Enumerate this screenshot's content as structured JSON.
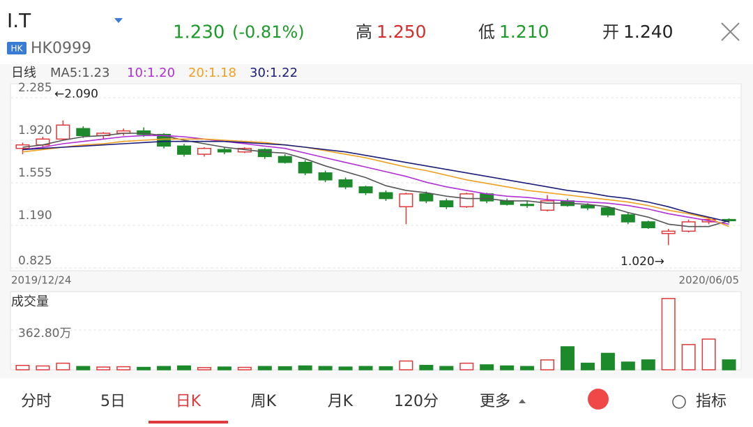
{
  "header": {
    "name": "I.T",
    "badge": "HK",
    "code": "HK0999",
    "price": "1.230",
    "change": "(-0.81%)",
    "high_label": "高",
    "high": "1.250",
    "low_label": "低",
    "low": "1.210",
    "open_label": "开",
    "open": "1.240"
  },
  "legend": {
    "period": "日线",
    "ma5": "MA5:1.23",
    "ma10": "10:1.20",
    "ma20": "20:1.18",
    "ma30": "30:1.22"
  },
  "chart_data": {
    "type": "candlestick",
    "categories": [
      "2019/12/24",
      null,
      null,
      null,
      null,
      null,
      null,
      null,
      null,
      null,
      null,
      null,
      null,
      null,
      null,
      null,
      null,
      null,
      null,
      null,
      null,
      null,
      null,
      null,
      null,
      null,
      null,
      null,
      null,
      null,
      null,
      null,
      null,
      null,
      null,
      "2020/06/05"
    ],
    "open": [
      1.85,
      1.88,
      1.93,
      2.02,
      1.96,
      1.98,
      2.0,
      1.97,
      1.87,
      1.8,
      1.84,
      1.82,
      1.84,
      1.78,
      1.73,
      1.64,
      1.58,
      1.52,
      1.47,
      1.35,
      1.46,
      1.4,
      1.35,
      1.46,
      1.4,
      1.37,
      1.32,
      1.4,
      1.36,
      1.34,
      1.28,
      1.22,
      1.12,
      1.14,
      1.22,
      1.24
    ],
    "high": [
      1.9,
      1.95,
      2.09,
      2.04,
      1.99,
      2.02,
      2.03,
      1.98,
      1.89,
      1.86,
      1.86,
      1.86,
      1.85,
      1.8,
      1.75,
      1.66,
      1.6,
      1.53,
      1.49,
      1.47,
      1.48,
      1.42,
      1.47,
      1.47,
      1.42,
      1.4,
      1.45,
      1.42,
      1.38,
      1.35,
      1.3,
      1.23,
      1.16,
      1.24,
      1.26,
      1.25
    ],
    "low": [
      1.8,
      1.86,
      1.92,
      1.94,
      1.93,
      1.96,
      1.95,
      1.85,
      1.78,
      1.78,
      1.8,
      1.81,
      1.76,
      1.72,
      1.62,
      1.56,
      1.5,
      1.45,
      1.4,
      1.2,
      1.38,
      1.33,
      1.34,
      1.38,
      1.36,
      1.34,
      1.31,
      1.35,
      1.32,
      1.26,
      1.2,
      1.16,
      1.02,
      1.13,
      1.2,
      1.21
    ],
    "close": [
      1.88,
      1.93,
      2.05,
      1.96,
      1.98,
      2.0,
      1.97,
      1.87,
      1.8,
      1.85,
      1.82,
      1.85,
      1.78,
      1.73,
      1.64,
      1.58,
      1.52,
      1.47,
      1.42,
      1.46,
      1.4,
      1.35,
      1.46,
      1.4,
      1.37,
      1.36,
      1.4,
      1.36,
      1.34,
      1.28,
      1.22,
      1.17,
      1.14,
      1.22,
      1.24,
      1.23
    ],
    "up_color": "#e0393b",
    "down_color": "#1c8a2a",
    "series": [
      {
        "name": "MA5:1.23",
        "color": "#555555",
        "values": [
          1.86,
          1.88,
          1.92,
          1.95,
          1.96,
          1.98,
          1.98,
          1.96,
          1.92,
          1.89,
          1.86,
          1.84,
          1.82,
          1.81,
          1.76,
          1.7,
          1.65,
          1.6,
          1.53,
          1.49,
          1.47,
          1.44,
          1.42,
          1.42,
          1.4,
          1.4,
          1.38,
          1.38,
          1.37,
          1.35,
          1.3,
          1.26,
          1.2,
          1.18,
          1.18,
          1.23
        ]
      },
      {
        "name": "10:1.20",
        "color": "#b02fd6",
        "values": [
          1.84,
          1.86,
          1.89,
          1.91,
          1.93,
          1.95,
          1.96,
          1.96,
          1.95,
          1.93,
          1.91,
          1.89,
          1.87,
          1.85,
          1.81,
          1.77,
          1.73,
          1.69,
          1.65,
          1.61,
          1.56,
          1.52,
          1.49,
          1.46,
          1.44,
          1.43,
          1.41,
          1.4,
          1.39,
          1.38,
          1.36,
          1.33,
          1.29,
          1.26,
          1.23,
          1.2
        ]
      },
      {
        "name": "20:1.18",
        "color": "#f0a020",
        "values": [
          1.82,
          1.84,
          1.86,
          1.88,
          1.89,
          1.91,
          1.92,
          1.93,
          1.93,
          1.93,
          1.92,
          1.91,
          1.9,
          1.88,
          1.86,
          1.83,
          1.8,
          1.77,
          1.73,
          1.69,
          1.66,
          1.62,
          1.58,
          1.55,
          1.52,
          1.49,
          1.47,
          1.45,
          1.43,
          1.41,
          1.39,
          1.36,
          1.32,
          1.29,
          1.25,
          1.18
        ]
      },
      {
        "name": "30:1.22",
        "color": "#1d1d7a",
        "values": [
          1.84,
          1.85,
          1.86,
          1.87,
          1.88,
          1.89,
          1.9,
          1.91,
          1.91,
          1.91,
          1.91,
          1.9,
          1.89,
          1.88,
          1.86,
          1.84,
          1.82,
          1.79,
          1.76,
          1.73,
          1.7,
          1.67,
          1.64,
          1.61,
          1.58,
          1.55,
          1.52,
          1.49,
          1.47,
          1.44,
          1.42,
          1.39,
          1.35,
          1.3,
          1.26,
          1.22
        ]
      }
    ],
    "ylim": [
      0.825,
      2.285
    ],
    "yticks": [
      2.285,
      {
        "value": 1.92,
        "label": "1.920"
      },
      1.555,
      {
        "value": 1.19,
        "label": "1.190"
      },
      0.825
    ],
    "annotations": [
      "←2.090",
      "1.020→"
    ],
    "volume": {
      "title": "成交量",
      "values": [
        40,
        35,
        60,
        30,
        25,
        28,
        22,
        30,
        35,
        20,
        25,
        22,
        30,
        28,
        35,
        30,
        25,
        30,
        28,
        80,
        40,
        30,
        60,
        45,
        35,
        30,
        90,
        210,
        60,
        150,
        70,
        90,
        650,
        230,
        280,
        90
      ],
      "ylim": [
        0,
        700
      ],
      "yticks": [
        {
          "value": 362.8,
          "label": "362.80万"
        }
      ]
    }
  },
  "tabs": [
    "分时",
    "5日",
    "日K",
    "周K",
    "月K",
    "120分",
    "更多",
    "指标"
  ],
  "active_tab": 2
}
